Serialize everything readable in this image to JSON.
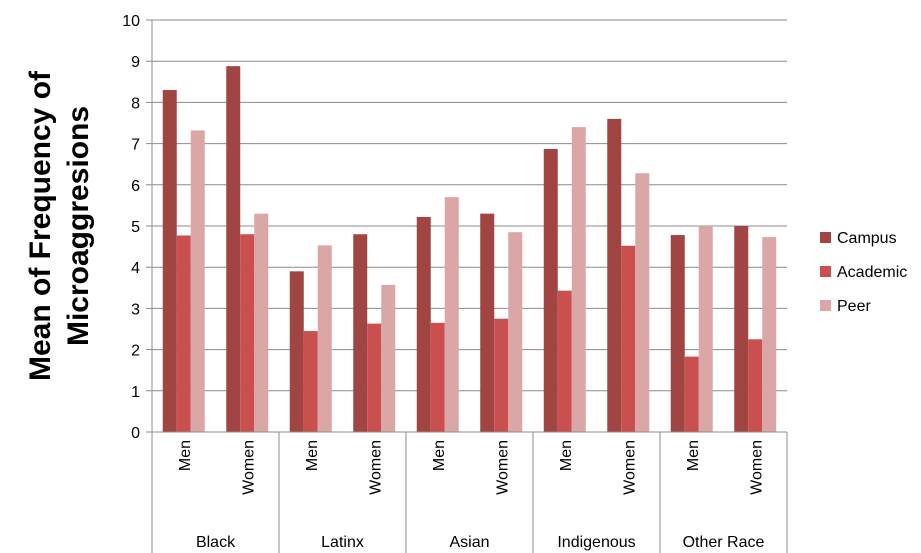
{
  "chart_data": {
    "type": "bar",
    "title": "",
    "ylabel_lines": [
      "Mean of Frequency of",
      "Microaggresions"
    ],
    "ylim": [
      0,
      10
    ],
    "yticks": [
      0,
      1,
      2,
      3,
      4,
      5,
      6,
      7,
      8,
      9,
      10
    ],
    "grid": true,
    "legend_position": "right",
    "groups": [
      {
        "label": "Black",
        "subcategories": [
          "Men",
          "Women"
        ]
      },
      {
        "label": "Latinx",
        "subcategories": [
          "Men",
          "Women"
        ]
      },
      {
        "label": "Asian",
        "subcategories": [
          "Men",
          "Women"
        ]
      },
      {
        "label": "Indigenous",
        "subcategories": [
          "Men",
          "Women"
        ]
      },
      {
        "label": "Other Race",
        "subcategories": [
          "Men",
          "Women"
        ]
      }
    ],
    "series": [
      {
        "name": "Campus",
        "color": "#a14543",
        "values": [
          8.3,
          8.88,
          3.9,
          4.8,
          5.22,
          5.3,
          6.87,
          7.6,
          4.78,
          5.0
        ]
      },
      {
        "name": "Academic",
        "color": "#c9504e",
        "values": [
          4.77,
          4.8,
          2.45,
          2.63,
          2.65,
          2.75,
          3.43,
          4.52,
          1.83,
          2.25
        ]
      },
      {
        "name": "Peer",
        "color": "#dba7a6",
        "values": [
          7.32,
          5.3,
          4.53,
          3.57,
          5.7,
          4.85,
          7.4,
          6.28,
          5.0,
          4.73
        ]
      }
    ]
  }
}
